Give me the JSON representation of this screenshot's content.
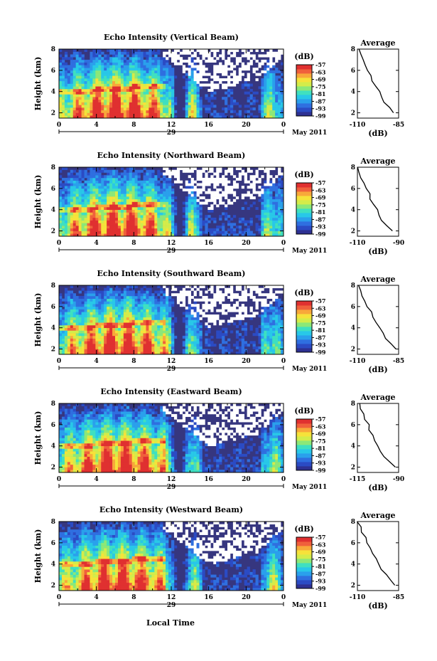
{
  "x_axis_label": "Local Time",
  "date_label": "May 2011",
  "color_scale": [
    "#2e3192",
    "#2b4bc4",
    "#2f6fe0",
    "#2aa0ec",
    "#28c8e8",
    "#3fe0c0",
    "#8ce878",
    "#d4ec4a",
    "#f6e23a",
    "#f8a83a",
    "#f0603c",
    "#e03030"
  ],
  "background_color": "#36367f",
  "chart_data": [
    {
      "type": "heatmap",
      "title": "Echo Intensity (Vertical Beam)",
      "ylabel": "Height (km)",
      "x_ticks": [
        "0",
        "4",
        "8",
        "12",
        "16",
        "20",
        "0"
      ],
      "day_label": "29",
      "xlim": [
        0,
        24
      ],
      "ylim": [
        1.5,
        8
      ],
      "y_ticks": [
        "2",
        "4",
        "6",
        "8"
      ],
      "colorbar": {
        "label": "(dB)",
        "ticks": [
          "-57",
          "-63",
          "-69",
          "-75",
          "-81",
          "-87",
          "-93",
          "-99"
        ]
      },
      "profile": {
        "title": "Average",
        "xlabel": "(dB)",
        "x_ticks": [
          "-110",
          "-85"
        ],
        "xlim": [
          -110,
          -85
        ],
        "heights": [
          2,
          2.5,
          3,
          3.5,
          4,
          4.5,
          5,
          5.5,
          6,
          6.5,
          7,
          7.5,
          8
        ],
        "values": [
          -88,
          -91,
          -94,
          -96,
          -97,
          -99,
          -101,
          -102,
          -104,
          -105,
          -107,
          -108,
          -109
        ]
      }
    },
    {
      "type": "heatmap",
      "title": "Echo Intensity (Northward Beam)",
      "ylabel": "Height (km)",
      "x_ticks": [
        "0",
        "4",
        "8",
        "12",
        "16",
        "20",
        "0"
      ],
      "day_label": "29",
      "xlim": [
        0,
        24
      ],
      "ylim": [
        1.5,
        8
      ],
      "y_ticks": [
        "2",
        "4",
        "6",
        "8"
      ],
      "colorbar": {
        "label": "(dB)",
        "ticks": [
          "-57",
          "-63",
          "-69",
          "-75",
          "-81",
          "-87",
          "-93",
          "-99"
        ]
      },
      "profile": {
        "title": "Average",
        "xlabel": "(dB)",
        "x_ticks": [
          "-110",
          "-90"
        ],
        "xlim": [
          -110,
          -85
        ],
        "heights": [
          2,
          2.5,
          3,
          3.5,
          4,
          4.5,
          5,
          5.5,
          6,
          6.5,
          7,
          7.5,
          8
        ],
        "values": [
          -89,
          -92,
          -95,
          -97,
          -98,
          -100,
          -102,
          -103,
          -105,
          -106,
          -108,
          -109,
          -110
        ]
      }
    },
    {
      "type": "heatmap",
      "title": "Echo Intensity (Southward Beam)",
      "ylabel": "Height (km)",
      "x_ticks": [
        "0",
        "4",
        "8",
        "12",
        "16",
        "20",
        "0"
      ],
      "day_label": "29",
      "xlim": [
        0,
        24
      ],
      "ylim": [
        1.5,
        8
      ],
      "y_ticks": [
        "2",
        "4",
        "6",
        "8"
      ],
      "colorbar": {
        "label": "(dB)",
        "ticks": [
          "-57",
          "-63",
          "-69",
          "-75",
          "-81",
          "-87",
          "-93",
          "-99"
        ]
      },
      "profile": {
        "title": "Average",
        "xlabel": "(dB)",
        "x_ticks": [
          "-110",
          "-85"
        ],
        "xlim": [
          -110,
          -85
        ],
        "heights": [
          2,
          2.5,
          3,
          3.5,
          4,
          4.5,
          5,
          5.5,
          6,
          6.5,
          7,
          7.5,
          8
        ],
        "values": [
          -87,
          -90,
          -93,
          -95,
          -97,
          -99,
          -101,
          -102,
          -104,
          -105,
          -107,
          -108,
          -109
        ]
      }
    },
    {
      "type": "heatmap",
      "title": "Echo Intensity (Eastward Beam)",
      "ylabel": "Height (km)",
      "x_ticks": [
        "0",
        "4",
        "8",
        "12",
        "16",
        "20",
        "0"
      ],
      "day_label": "29",
      "xlim": [
        0,
        24
      ],
      "ylim": [
        1.5,
        8
      ],
      "y_ticks": [
        "2",
        "4",
        "6",
        "8"
      ],
      "colorbar": {
        "label": "(dB)",
        "ticks": [
          "-57",
          "-63",
          "-69",
          "-75",
          "-81",
          "-87",
          "-93",
          "-99"
        ]
      },
      "profile": {
        "title": "Average",
        "xlabel": "(dB)",
        "x_ticks": [
          "-115",
          "-90"
        ],
        "xlim": [
          -115,
          -85
        ],
        "heights": [
          2,
          2.5,
          3,
          3.5,
          4,
          4.5,
          5,
          5.5,
          6,
          6.5,
          7,
          7.5,
          8
        ],
        "values": [
          -88,
          -92,
          -95,
          -98,
          -100,
          -102,
          -104,
          -106,
          -107,
          -109,
          -111,
          -113,
          -114
        ]
      }
    },
    {
      "type": "heatmap",
      "title": "Echo Intensity (Westward Beam)",
      "ylabel": "Height (km)",
      "x_ticks": [
        "0",
        "4",
        "8",
        "12",
        "16",
        "20",
        "0"
      ],
      "day_label": "29",
      "xlim": [
        0,
        24
      ],
      "ylim": [
        1.5,
        8
      ],
      "y_ticks": [
        "2",
        "4",
        "6",
        "8"
      ],
      "colorbar": {
        "label": "(dB)",
        "ticks": [
          "-57",
          "-63",
          "-69",
          "-75",
          "-81",
          "-87",
          "-93",
          "-99"
        ]
      },
      "profile": {
        "title": "Average",
        "xlabel": "(dB)",
        "x_ticks": [
          "-110",
          "-85"
        ],
        "xlim": [
          -110,
          -85
        ],
        "heights": [
          2,
          2.5,
          3,
          3.5,
          4,
          4.5,
          5,
          5.5,
          6,
          6.5,
          7,
          7.5,
          8
        ],
        "values": [
          -87,
          -90,
          -93,
          -95,
          -97,
          -99,
          -101,
          -102,
          -104,
          -105,
          -107,
          -108,
          -110
        ]
      }
    }
  ]
}
